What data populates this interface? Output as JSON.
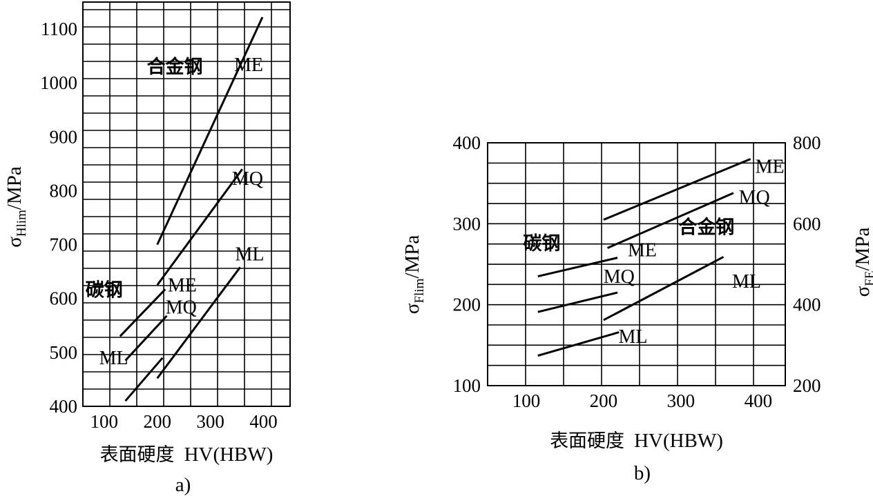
{
  "chart_data": [
    {
      "panel": "a)",
      "type": "line",
      "xlabel_text": "表面硬度",
      "xlabel_unit": "HV(HBW)",
      "ylabel_symbol": "σ",
      "ylabel_sub": "Hlim",
      "ylabel_unit": "/MPa",
      "xlim": [
        60,
        450
      ],
      "ylim": [
        400,
        1150
      ],
      "xticks": [
        100,
        200,
        300,
        400
      ],
      "yticks": [
        400,
        500,
        600,
        700,
        800,
        900,
        1000,
        1100
      ],
      "grid": true,
      "groups": [
        {
          "label": "合金钢",
          "label_at": [
            233,
            1018
          ]
        },
        {
          "label": "碳钢",
          "label_at": [
            100,
            604
          ]
        }
      ],
      "series": [
        {
          "name": "ME",
          "group": "合金钢",
          "x": [
            200,
            398
          ],
          "y": [
            700,
            1122
          ],
          "label_at": [
            372,
            1022
          ]
        },
        {
          "name": "MQ",
          "group": "合金钢",
          "x": [
            200,
            360
          ],
          "y": [
            625,
            840
          ],
          "label_at": [
            370,
            811
          ]
        },
        {
          "name": "ML",
          "group": "合金钢",
          "x": [
            200,
            356
          ],
          "y": [
            452,
            658
          ],
          "label_at": [
            374,
            671
          ]
        },
        {
          "name": "ME",
          "group": "碳钢",
          "x": [
            130,
            215
          ],
          "y": [
            530,
            617
          ],
          "label_at": [
            247,
            613
          ]
        },
        {
          "name": "MQ",
          "group": "碳钢",
          "x": [
            140,
            218
          ],
          "y": [
            485,
            568
          ],
          "label_at": [
            245,
            572
          ]
        },
        {
          "name": "ML",
          "group": "碳钢",
          "x": [
            140,
            210
          ],
          "y": [
            410,
            490
          ],
          "label_at": [
            118,
            478
          ]
        }
      ]
    },
    {
      "panel": "b)",
      "type": "line",
      "xlabel_text": "表面硬度",
      "xlabel_unit": "HV(HBW)",
      "ylabel_symbol": "σ",
      "ylabel_sub": "Flim",
      "ylabel_unit": "/MPa",
      "y2label_symbol": "σ",
      "y2label_sub": "FE",
      "y2label_unit": "/MPa",
      "xlim": [
        50,
        435
      ],
      "ylim": [
        100,
        400
      ],
      "y2lim": [
        200,
        800
      ],
      "xticks": [
        100,
        200,
        300,
        400
      ],
      "yticks": [
        100,
        200,
        300,
        400
      ],
      "y2ticks": [
        200,
        400,
        600,
        800
      ],
      "grid": true,
      "groups": [
        {
          "label": "碳钢",
          "label_at": [
            120,
            268
          ]
        },
        {
          "label": "合金钢",
          "label_at": [
            333,
            288
          ]
        }
      ],
      "series": [
        {
          "name": "ME",
          "group": "合金钢",
          "x": [
            200,
            390
          ],
          "y": [
            305,
            380
          ],
          "label_at": [
            415,
            363
          ]
        },
        {
          "name": "MQ",
          "group": "合金钢",
          "x": [
            205,
            368
          ],
          "y": [
            270,
            338
          ],
          "label_at": [
            395,
            325
          ]
        },
        {
          "name": "ML",
          "group": "合金钢",
          "x": [
            200,
            355
          ],
          "y": [
            181,
            259
          ],
          "label_at": [
            385,
            221
          ]
        },
        {
          "name": "ME",
          "group": "碳钢",
          "x": [
            115,
            218
          ],
          "y": [
            235,
            258
          ],
          "label_at": [
            250,
            260
          ]
        },
        {
          "name": "MQ",
          "group": "碳钢",
          "x": [
            115,
            218
          ],
          "y": [
            191,
            215
          ],
          "label_at": [
            220,
            227
          ]
        },
        {
          "name": "ML",
          "group": "碳钢",
          "x": [
            115,
            220
          ],
          "y": [
            137,
            166
          ],
          "label_at": [
            238,
            153
          ]
        }
      ]
    }
  ]
}
